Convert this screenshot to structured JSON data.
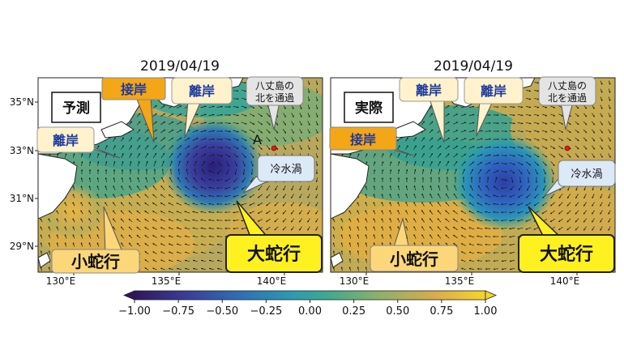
{
  "chart_data": [
    {
      "type": "heatmap",
      "title": "2019/04/19",
      "panel_label": "予測",
      "x_ticks": [
        "130°E",
        "135°E",
        "140°E"
      ],
      "y_ticks": [
        "35°N",
        "33°N",
        "31°N",
        "29°N"
      ],
      "xlim": [
        129.3,
        142.5
      ],
      "ylim": [
        28.2,
        36.2
      ],
      "point": {
        "label": "A",
        "lon": 139.8,
        "lat": 32.9
      },
      "callouts": [
        {
          "text": "接岸",
          "style": "orange"
        },
        {
          "text": "離岸",
          "style": "cream"
        },
        {
          "text": "八丈島の\n北を通過",
          "style": "gray"
        },
        {
          "text": "離岸",
          "style": "cream"
        },
        {
          "text": "冷水渦",
          "style": "lightblue"
        },
        {
          "text": "大蛇行",
          "style": "yellow"
        },
        {
          "text": "小蛇行",
          "style": "cream"
        }
      ]
    },
    {
      "type": "heatmap",
      "title": "2019/04/19",
      "panel_label": "実際",
      "x_ticks": [
        "130°E",
        "135°E",
        "140°E"
      ],
      "y_ticks": [],
      "xlim": [
        129.3,
        142.5
      ],
      "ylim": [
        28.2,
        36.2
      ],
      "point": {
        "label": "",
        "lon": 139.8,
        "lat": 32.9
      },
      "callouts": [
        {
          "text": "離岸",
          "style": "cream"
        },
        {
          "text": "離岸",
          "style": "cream"
        },
        {
          "text": "八丈島の\n北を通過",
          "style": "gray"
        },
        {
          "text": "接岸",
          "style": "orange"
        },
        {
          "text": "冷水渦",
          "style": "lightblue"
        },
        {
          "text": "大蛇行",
          "style": "yellow"
        },
        {
          "text": "小蛇行",
          "style": "cream"
        }
      ]
    }
  ],
  "colorbar": {
    "ticks": [
      "−1.00",
      "−0.75",
      "−0.50",
      "−0.25",
      "0.00",
      "0.25",
      "0.50",
      "0.75",
      "1.00"
    ],
    "range": [
      -1.0,
      1.0
    ]
  }
}
